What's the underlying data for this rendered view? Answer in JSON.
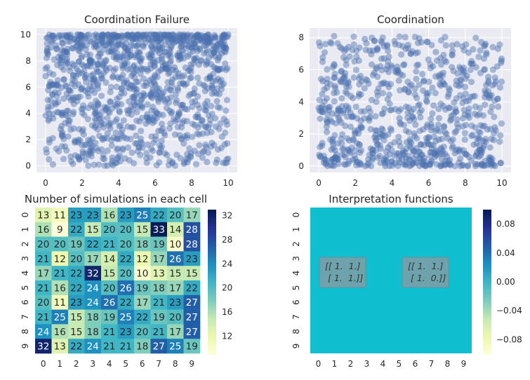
{
  "chart_data": [
    {
      "type": "scatter",
      "title": "Coordination Failure",
      "xlabel": "",
      "ylabel": "",
      "xlim": [
        -0.5,
        10.5
      ],
      "ylim": [
        -0.5,
        10.5
      ],
      "xticks": [
        "0",
        "2",
        "4",
        "6",
        "8",
        "10"
      ],
      "yticks": [
        "0",
        "2",
        "4",
        "6",
        "8",
        "10"
      ],
      "point_color": "#4c72b0",
      "point_count_estimate": 1200,
      "density_note": "dense above y=6, sparse below y=4",
      "grid": true,
      "background": "#eaeaf2"
    },
    {
      "type": "scatter",
      "title": "Coordination",
      "xlabel": "",
      "ylabel": "",
      "xlim": [
        -0.5,
        10.5
      ],
      "ylim": [
        -0.4,
        8.6
      ],
      "xticks": [
        "0",
        "2",
        "4",
        "6",
        "8",
        "10"
      ],
      "yticks": [
        "0",
        "2",
        "4",
        "6",
        "8"
      ],
      "point_color": "#4c72b0",
      "point_count_estimate": 800,
      "density_note": "dense below y=5, sparse above",
      "grid": true,
      "background": "#eaeaf2"
    },
    {
      "type": "heatmap",
      "title": "Number of simulations in each cell",
      "xticks": [
        "0",
        "1",
        "2",
        "3",
        "4",
        "5",
        "6",
        "7",
        "8",
        "9"
      ],
      "yticks": [
        "0",
        "1",
        "2",
        "3",
        "4",
        "5",
        "6",
        "7",
        "8",
        "9"
      ],
      "values": [
        [
          13,
          11,
          23,
          23,
          16,
          23,
          25,
          22,
          20,
          17
        ],
        [
          16,
          9,
          22,
          15,
          20,
          20,
          15,
          33,
          14,
          28
        ],
        [
          20,
          20,
          19,
          22,
          21,
          20,
          18,
          19,
          10,
          28
        ],
        [
          21,
          12,
          20,
          17,
          14,
          22,
          12,
          17,
          26,
          23
        ],
        [
          17,
          21,
          22,
          32,
          15,
          20,
          10,
          13,
          15,
          15
        ],
        [
          21,
          16,
          22,
          24,
          20,
          26,
          19,
          18,
          17,
          22
        ],
        [
          20,
          11,
          23,
          24,
          26,
          22,
          17,
          21,
          23,
          27
        ],
        [
          21,
          25,
          15,
          18,
          19,
          25,
          22,
          19,
          20,
          27
        ],
        [
          24,
          16,
          15,
          18,
          21,
          23,
          20,
          21,
          17,
          27
        ],
        [
          32,
          13,
          22,
          24,
          21,
          21,
          18,
          27,
          25,
          19
        ]
      ],
      "colormap": "YlGnBu",
      "colorbar_ticks": [
        "12",
        "16",
        "20",
        "24",
        "28",
        "32"
      ],
      "colorbar_range": [
        9,
        33
      ]
    },
    {
      "type": "heatmap",
      "title": "Interpretation functions",
      "xticks": [
        "0",
        "1",
        "2",
        "3",
        "4",
        "5",
        "6",
        "7",
        "8",
        "9"
      ],
      "yticks": [
        "0",
        "1",
        "2",
        "3",
        "4",
        "5",
        "6",
        "7",
        "8",
        "9"
      ],
      "fill_value": 0.0,
      "fill_color": "#0fbfd0",
      "colorbar_ticks": [
        "0.08",
        "0.04",
        "0.00",
        "−0.04",
        "−0.08"
      ],
      "colorbar_range": [
        -0.1,
        0.1
      ],
      "annotations": [
        {
          "line1": "[[ 1.  1.]",
          "line2": " [ 1.  1.]]"
        },
        {
          "line1": "[[ 1.  1.]",
          "line2": " [ 1.  0.]]"
        }
      ]
    }
  ]
}
